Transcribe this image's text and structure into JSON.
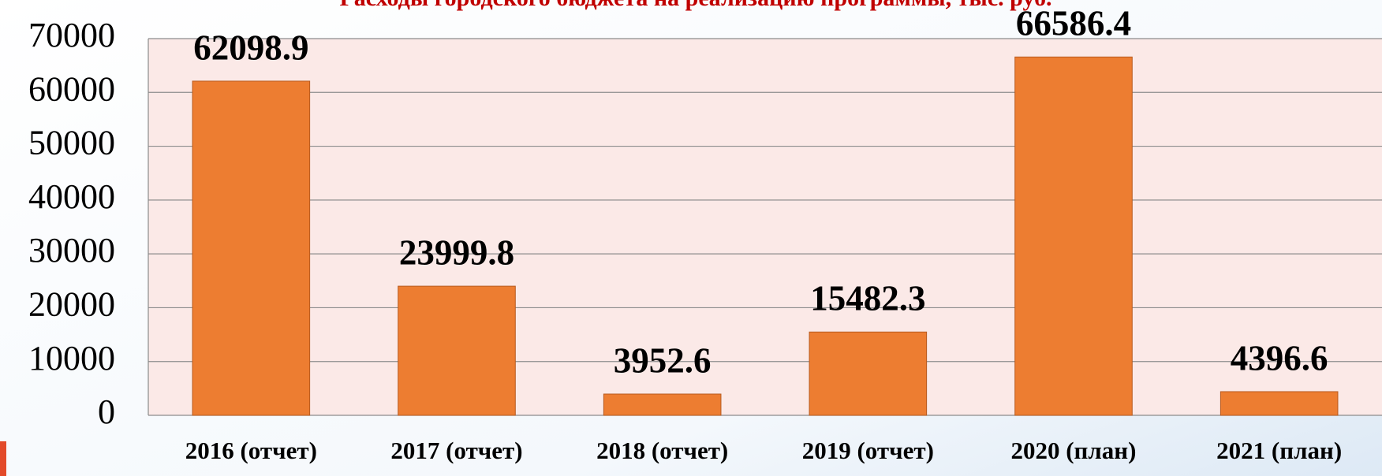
{
  "chart_data": {
    "type": "bar",
    "title": "Расходы городского бюджета на реализацию программы, тыс. руб.",
    "categories": [
      "2016 (отчет)",
      "2017 (отчет)",
      "2018 (отчет)",
      "2019 (отчет)",
      "2020 (план)",
      "2021 (план)"
    ],
    "values": [
      62098.9,
      23999.8,
      3952.6,
      15482.3,
      66586.4,
      4396.6
    ],
    "color": "#ed7d31",
    "ylim": [
      0,
      70000
    ],
    "yticks": [
      0,
      10000,
      20000,
      30000,
      40000,
      50000,
      60000,
      70000
    ],
    "grid": true
  }
}
